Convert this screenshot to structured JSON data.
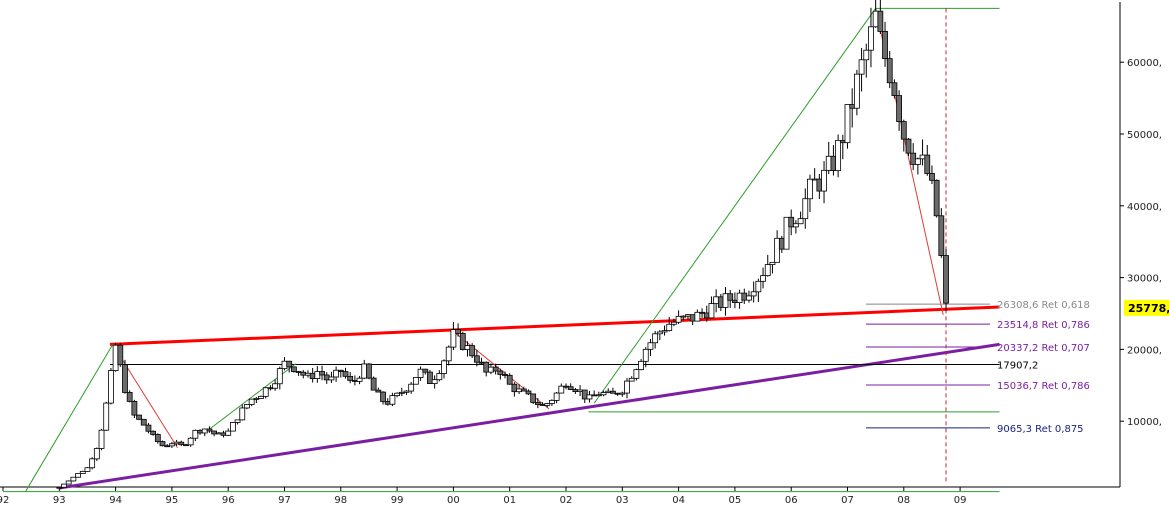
{
  "chart_data": {
    "type": "candlestick",
    "title": "",
    "xlabel": "",
    "ylabel": "",
    "ylim": [
      0,
      68000
    ],
    "xlim": [
      1992.0,
      2010.0
    ],
    "grid": false,
    "x_ticks": [
      {
        "label": "92",
        "x": 1992.0
      },
      {
        "label": "93",
        "x": 1993.0
      },
      {
        "label": "94",
        "x": 1994.0
      },
      {
        "label": "95",
        "x": 1995.0
      },
      {
        "label": "96",
        "x": 1996.0
      },
      {
        "label": "97",
        "x": 1997.0
      },
      {
        "label": "98",
        "x": 1998.0
      },
      {
        "label": "99",
        "x": 1999.0
      },
      {
        "label": "00",
        "x": 2000.0
      },
      {
        "label": "01",
        "x": 2001.0
      },
      {
        "label": "02",
        "x": 2002.0
      },
      {
        "label": "03",
        "x": 2003.0
      },
      {
        "label": "04",
        "x": 2004.0
      },
      {
        "label": "05",
        "x": 2005.0
      },
      {
        "label": "06",
        "x": 2006.0
      },
      {
        "label": "07",
        "x": 2007.0
      },
      {
        "label": "08",
        "x": 2008.0
      },
      {
        "label": "09",
        "x": 2009.0
      }
    ],
    "y_ticks": [
      {
        "label": "10000,",
        "y": 10000
      },
      {
        "label": "20000,",
        "y": 20000
      },
      {
        "label": "30000,",
        "y": 30000
      },
      {
        "label": "40000,",
        "y": 40000
      },
      {
        "label": "50000,",
        "y": 50000
      },
      {
        "label": "60000,",
        "y": 60000
      }
    ],
    "last_value": {
      "label": "25778,",
      "y": 25778,
      "color": "#ffff00"
    },
    "series": [
      {
        "type": "candlestick",
        "close_path": [
          [
            1992.0,
            200
          ],
          [
            1992.5,
            300
          ],
          [
            1993.0,
            800
          ],
          [
            1993.3,
            2500
          ],
          [
            1993.5,
            3500
          ],
          [
            1993.7,
            7000
          ],
          [
            1993.85,
            13000
          ],
          [
            1994.0,
            20500
          ],
          [
            1994.15,
            15000
          ],
          [
            1994.3,
            11000
          ],
          [
            1994.5,
            9500
          ],
          [
            1994.7,
            7500
          ],
          [
            1994.85,
            6500
          ],
          [
            1995.0,
            7000
          ],
          [
            1995.2,
            6500
          ],
          [
            1995.4,
            8500
          ],
          [
            1995.6,
            9000
          ],
          [
            1995.8,
            8000
          ],
          [
            1996.0,
            8500
          ],
          [
            1996.2,
            11000
          ],
          [
            1996.4,
            13000
          ],
          [
            1996.6,
            14000
          ],
          [
            1996.8,
            15500
          ],
          [
            1997.0,
            18000
          ],
          [
            1997.2,
            17500
          ],
          [
            1997.4,
            16000
          ],
          [
            1997.6,
            17000
          ],
          [
            1997.8,
            15500
          ],
          [
            1998.0,
            17000
          ],
          [
            1998.2,
            15000
          ],
          [
            1998.4,
            17500
          ],
          [
            1998.6,
            14000
          ],
          [
            1998.8,
            12500
          ],
          [
            1999.0,
            13500
          ],
          [
            1999.2,
            15000
          ],
          [
            1999.4,
            17000
          ],
          [
            1999.6,
            15500
          ],
          [
            1999.8,
            18000
          ],
          [
            2000.0,
            22000
          ],
          [
            2000.2,
            20500
          ],
          [
            2000.4,
            19000
          ],
          [
            2000.6,
            16500
          ],
          [
            2000.8,
            17500
          ],
          [
            2001.0,
            15000
          ],
          [
            2001.2,
            14000
          ],
          [
            2001.4,
            13000
          ],
          [
            2001.6,
            12000
          ],
          [
            2001.8,
            13500
          ],
          [
            2002.0,
            15500
          ],
          [
            2002.2,
            14500
          ],
          [
            2002.4,
            13000
          ],
          [
            2002.6,
            14000
          ],
          [
            2002.8,
            13500
          ],
          [
            2003.0,
            14500
          ],
          [
            2003.2,
            17000
          ],
          [
            2003.4,
            20000
          ],
          [
            2003.6,
            22000
          ],
          [
            2003.8,
            23500
          ],
          [
            2004.0,
            24000
          ],
          [
            2004.3,
            24500
          ],
          [
            2004.6,
            26000
          ],
          [
            2004.9,
            27000
          ],
          [
            2005.2,
            28000
          ],
          [
            2005.5,
            31000
          ],
          [
            2005.8,
            35000
          ],
          [
            2006.0,
            38000
          ],
          [
            2006.2,
            40000
          ],
          [
            2006.4,
            43000
          ],
          [
            2006.6,
            44000
          ],
          [
            2006.8,
            47000
          ],
          [
            2007.0,
            52000
          ],
          [
            2007.2,
            58000
          ],
          [
            2007.4,
            63000
          ],
          [
            2007.5,
            66000
          ],
          [
            2007.6,
            62000
          ],
          [
            2007.8,
            58000
          ],
          [
            2008.0,
            50000
          ],
          [
            2008.2,
            47000
          ],
          [
            2008.4,
            45000
          ],
          [
            2008.5,
            42000
          ],
          [
            2008.6,
            38000
          ],
          [
            2008.7,
            30000
          ],
          [
            2008.75,
            25778
          ]
        ]
      }
    ],
    "lines": [
      {
        "from": [
          1993.9,
          20700
        ],
        "to": [
          2009.7,
          25900
        ],
        "color": "#ff0000"
      },
      {
        "from": [
          1993.0,
          700
        ],
        "to": [
          2009.7,
          20700
        ],
        "color": "#7b1fa2"
      },
      {
        "from": [
          1993.9,
          17900
        ],
        "to": [
          2009.7,
          17900
        ],
        "color": "#000000"
      },
      {
        "from": [
          2002.4,
          11300
        ],
        "to": [
          2009.7,
          11300
        ],
        "color": "#2e9e2e"
      },
      {
        "from": [
          1992.0,
          200
        ],
        "to": [
          2009.7,
          200
        ],
        "color": "#2e9e2e"
      },
      {
        "from": [
          2007.5,
          67500
        ],
        "to": [
          2009.7,
          67500
        ],
        "color": "#2e9e2e"
      },
      {
        "from": [
          1992.4,
          200
        ],
        "to": [
          1993.95,
          20700
        ],
        "color": "#2e9e2e"
      },
      {
        "from": [
          2002.5,
          12500
        ],
        "to": [
          2007.5,
          67500
        ],
        "color": "#2e9e2e"
      },
      {
        "from": [
          1995.6,
          8500
        ],
        "to": [
          1997.2,
          18000
        ],
        "color": "#2e9e2e"
      },
      {
        "from": [
          1993.95,
          20700
        ],
        "to": [
          1995.1,
          6300
        ],
        "color": "#e53935"
      },
      {
        "from": [
          2000.0,
          22500
        ],
        "to": [
          2001.7,
          11700
        ],
        "color": "#e53935"
      },
      {
        "from": [
          2007.5,
          67500
        ],
        "to": [
          2008.7,
          24800
        ],
        "color": "#e53935"
      }
    ],
    "fib_levels": [
      {
        "label": "26308,6 Ret 0,618",
        "value": 26308.6,
        "color": "#888888"
      },
      {
        "label": "23514,8 Ret 0,786",
        "value": 23514.8,
        "color": "#7b1fa2"
      },
      {
        "label": "20337,2 Ret 0,707",
        "value": 20337.2,
        "color": "#7b1fa2"
      },
      {
        "label": "17907,2",
        "value": 17907.2,
        "color": "#000000"
      },
      {
        "label": "15036,7 Ret 0,786",
        "value": 15036.7,
        "color": "#7b1fa2"
      },
      {
        "label": "9065,3 Ret 0,875",
        "value": 9065.3,
        "color": "#1a237e"
      }
    ],
    "vertical_marker": {
      "x": 2008.75,
      "color": "#c62828"
    }
  }
}
